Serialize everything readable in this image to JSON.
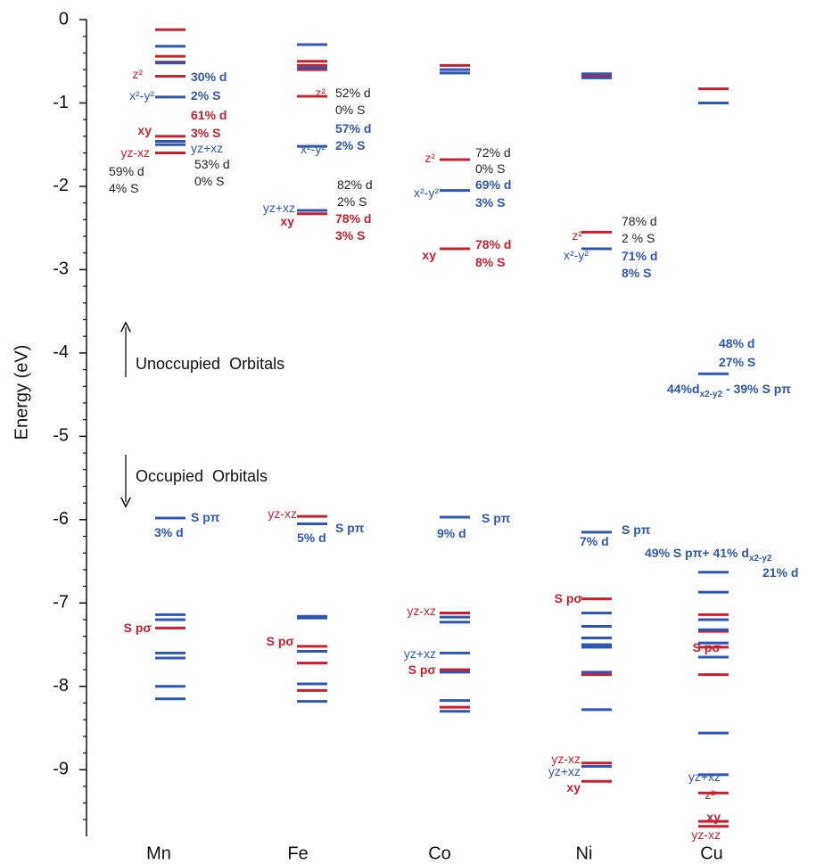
{
  "chart_data": {
    "type": "levels",
    "y_label": "Energy (eV)",
    "categories": [
      "Mn",
      "Fe",
      "Co",
      "Ni",
      "Cu"
    ],
    "ylim": [
      -9.8,
      0
    ],
    "yticks": [
      0,
      -1,
      -2,
      -3,
      -4,
      -5,
      -6,
      -7,
      -8,
      -9
    ],
    "yticks_minor": [
      -0.2,
      -0.4,
      -0.6,
      -0.8,
      -1.2,
      -1.4,
      -1.6,
      -1.8,
      -2.2,
      -2.4,
      -2.6,
      -2.8,
      -3.2,
      -3.4,
      -3.6,
      -3.8,
      -4.2,
      -4.4,
      -4.6,
      -4.8,
      -5.2,
      -5.4,
      -5.6,
      -5.8,
      -6.2,
      -6.4,
      -6.6,
      -6.8,
      -7.2,
      -7.4,
      -7.6,
      -7.8,
      -8.2,
      -8.4,
      -8.6,
      -8.8,
      -9.2,
      -9.4,
      -9.6
    ],
    "series": [
      {
        "color": "#c8202f",
        "values": [
          [
            -0.12,
            -0.44,
            -0.51,
            -0.68,
            -1.4,
            -1.6,
            -7.3
          ],
          [
            -0.5,
            -0.55,
            -0.6,
            -0.92,
            -2.33,
            -5.96,
            -7.52,
            -7.72,
            -8.05
          ],
          [
            -0.55,
            -1.68,
            -2.75,
            -7.12,
            -7.8,
            -8.25
          ],
          [
            -0.68,
            -2.55,
            -6.95,
            -7.86,
            -8.92,
            -9.14
          ],
          [
            -0.83,
            -7.14,
            -7.34,
            -7.53,
            -7.86,
            -9.28,
            -9.62,
            -9.68
          ]
        ]
      },
      {
        "color": "#2f56b0",
        "values": [
          [
            -0.32,
            -0.52,
            -0.93,
            -1.46,
            -1.5,
            -5.98,
            -7.14,
            -7.2,
            -7.6,
            -7.66,
            -8.0,
            -8.15
          ],
          [
            -0.3,
            -0.58,
            -1.52,
            -2.29,
            -6.05,
            -7.16,
            -7.18,
            -7.58,
            -7.97,
            -8.18
          ],
          [
            -0.6,
            -0.64,
            -2.05,
            -5.97,
            -7.17,
            -7.23,
            -7.6,
            -7.83,
            -8.17,
            -8.3
          ],
          [
            -0.65,
            -0.7,
            -2.75,
            -6.15,
            -7.12,
            -7.28,
            -7.42,
            -7.5,
            -7.53,
            -7.83,
            -8.28,
            -8.96
          ],
          [
            -1.0,
            -4.25,
            -6.63,
            -6.87,
            -7.2,
            -7.32,
            -7.48,
            -7.65,
            -8.56,
            -9.06
          ]
        ]
      }
    ],
    "region_labels": [
      "Unoccupied  Orbitals",
      "Occupied  Orbitals"
    ],
    "annotations": [
      {
        "text": "z²",
        "color": "#c8202f"
      },
      {
        "text": "30% d",
        "color": "#2f56b0",
        "bold": true
      },
      {
        "text": "x²-y²",
        "color": "#2f56b0"
      },
      {
        "text": "2% S",
        "color": "#2f56b0",
        "bold": true
      },
      {
        "text": "61% d",
        "color": "#c8202f",
        "bold": true
      },
      {
        "text": "xy",
        "color": "#c8202f",
        "bold": true
      },
      {
        "text": "3% S",
        "color": "#c8202f",
        "bold": true
      },
      {
        "text": "yz+xz",
        "color": "#2f56b0"
      },
      {
        "text": "yz-xz",
        "color": "#c8202f"
      },
      {
        "text": "59% d",
        "color": "#222222"
      },
      {
        "text": "53% d",
        "color": "#222222"
      },
      {
        "text": "4% S",
        "color": "#222222"
      },
      {
        "text": "0% S",
        "color": "#222222"
      },
      {
        "text": "z²",
        "color": "#c8202f"
      },
      {
        "text": "52% d",
        "color": "#222222"
      },
      {
        "text": "0% S",
        "color": "#222222"
      },
      {
        "text": "57% d",
        "color": "#2f56b0",
        "bold": true
      },
      {
        "text": "x²-y²",
        "color": "#2f56b0"
      },
      {
        "text": "2% S",
        "color": "#2f56b0",
        "bold": true
      },
      {
        "text": "82% d",
        "color": "#222222"
      },
      {
        "text": "yz+xz",
        "color": "#2f56b0"
      },
      {
        "text": "2% S",
        "color": "#222222"
      },
      {
        "text": "xy",
        "color": "#c8202f",
        "bold": true
      },
      {
        "text": "78% d",
        "color": "#c8202f",
        "bold": true
      },
      {
        "text": "3% S",
        "color": "#c8202f",
        "bold": true
      },
      {
        "text": "z²",
        "color": "#c8202f"
      },
      {
        "text": "72% d",
        "color": "#222222"
      },
      {
        "text": "0% S",
        "color": "#222222"
      },
      {
        "text": "x²-y²",
        "color": "#2f56b0"
      },
      {
        "text": "69% d",
        "color": "#2f56b0",
        "bold": true
      },
      {
        "text": "3% S",
        "color": "#2f56b0",
        "bold": true
      },
      {
        "text": "xy",
        "color": "#c8202f",
        "bold": true
      },
      {
        "text": "78% d",
        "color": "#c8202f",
        "bold": true
      },
      {
        "text": "8% S",
        "color": "#c8202f",
        "bold": true
      },
      {
        "text": "78% d",
        "color": "#222222"
      },
      {
        "text": "z²",
        "color": "#c8202f"
      },
      {
        "text": "2 % S",
        "color": "#222222"
      },
      {
        "text": "x²-y²",
        "color": "#2f56b0"
      },
      {
        "text": "71% d",
        "color": "#2f56b0",
        "bold": true
      },
      {
        "text": "8% S",
        "color": "#2f56b0",
        "bold": true
      },
      {
        "text": "48% d",
        "color": "#2f56b0",
        "bold": true
      },
      {
        "text": "27% S",
        "color": "#2f56b0",
        "bold": true
      },
      {
        "text": "44%d",
        "sub": "x2-y2",
        "after": " - 39% S pπ",
        "color": "#2f56b0",
        "bold": true
      },
      {
        "text": "S pπ",
        "color": "#2f56b0",
        "bold": true
      },
      {
        "text": "3% d",
        "color": "#2f56b0",
        "bold": true
      },
      {
        "text": "S pσ",
        "color": "#c8202f",
        "bold": true
      },
      {
        "text": "yz-xz",
        "color": "#c8202f"
      },
      {
        "text": "S pπ",
        "color": "#2f56b0",
        "bold": true
      },
      {
        "text": "5% d",
        "color": "#2f56b0",
        "bold": true
      },
      {
        "text": "S pσ",
        "color": "#c8202f",
        "bold": true
      },
      {
        "text": "S pπ",
        "color": "#2f56b0",
        "bold": true
      },
      {
        "text": "9% d",
        "color": "#2f56b0",
        "bold": true
      },
      {
        "text": "yz-xz",
        "color": "#c8202f"
      },
      {
        "text": "yz+xz",
        "color": "#2f56b0"
      },
      {
        "text": "S pσ",
        "color": "#c8202f",
        "bold": true
      },
      {
        "text": "S pπ",
        "color": "#2f56b0",
        "bold": true
      },
      {
        "text": "7% d",
        "color": "#2f56b0",
        "bold": true
      },
      {
        "text": "S pσ",
        "color": "#c8202f",
        "bold": true
      },
      {
        "text": "yz-xz",
        "color": "#c8202f"
      },
      {
        "text": "yz+xz",
        "color": "#2f56b0"
      },
      {
        "text": "xy",
        "color": "#c8202f",
        "bold": true
      },
      {
        "text": "49% S pπ+ 41% d",
        "sub": "x2-y2",
        "color": "#2f56b0",
        "bold": true
      },
      {
        "text": "21% d",
        "color": "#2f56b0",
        "bold": true
      },
      {
        "text": "S pσ",
        "color": "#c8202f",
        "bold": true
      },
      {
        "text": "yz+xz",
        "color": "#2f56b0"
      },
      {
        "text": "z²",
        "color": "#c8202f"
      },
      {
        "text": "xy",
        "color": "#c8202f",
        "bold": true
      },
      {
        "text": "yz-xz",
        "color": "#c8202f"
      }
    ]
  }
}
